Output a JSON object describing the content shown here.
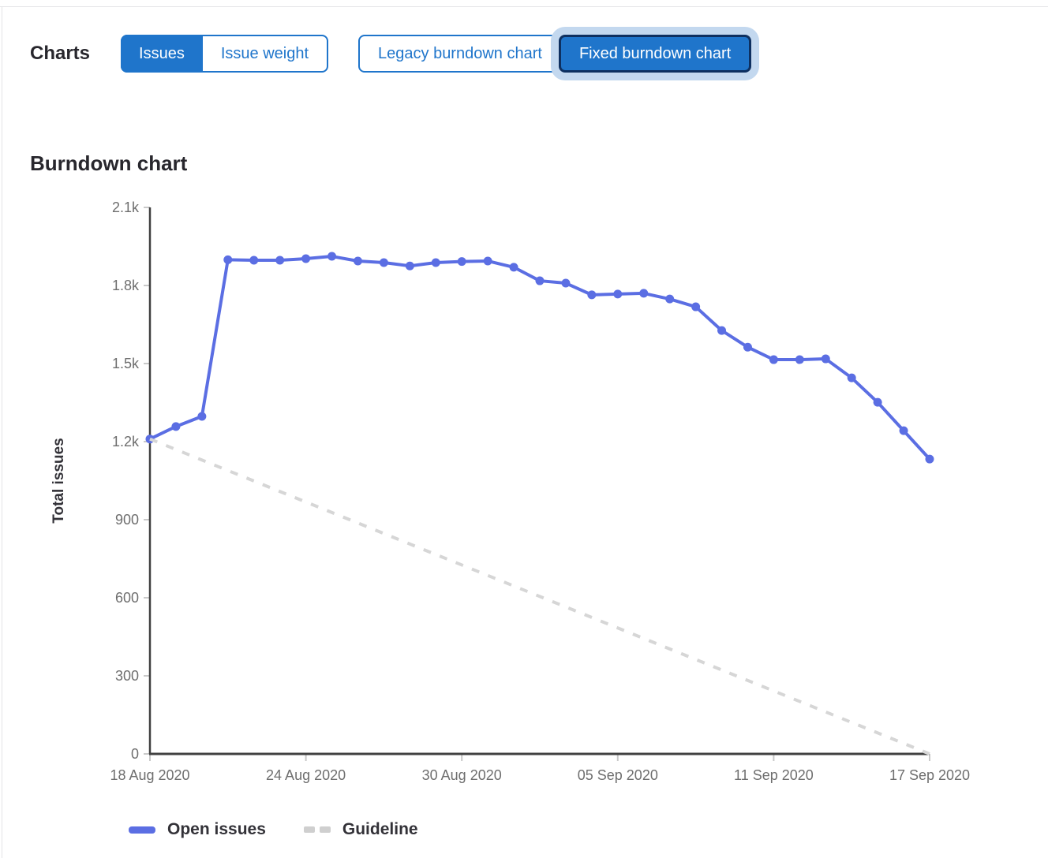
{
  "page": {
    "background": "#ffffff",
    "border_color": "#e4e4e7"
  },
  "header": {
    "charts_label": "Charts",
    "accent_color": "#1f75cb",
    "metric_toggle": [
      {
        "label": "Issues",
        "selected": true
      },
      {
        "label": "Issue weight",
        "selected": false
      }
    ],
    "version_toggle": [
      {
        "label": "Legacy burndown chart",
        "selected": false
      },
      {
        "label": "Fixed burndown chart",
        "selected": true,
        "focused": true
      }
    ]
  },
  "section": {
    "title": "Burndown chart"
  },
  "chart_data": {
    "type": "line",
    "title": "Burndown chart",
    "xlabel": "",
    "ylabel": "Total issues",
    "ylim": [
      0,
      2100
    ],
    "grid": false,
    "legend_position": "bottom",
    "y_ticks": [
      0,
      300,
      600,
      900,
      1200,
      1500,
      1800,
      2100
    ],
    "y_tick_labels": [
      "0",
      "300",
      "600",
      "900",
      "1.2k",
      "1.5k",
      "1.8k",
      "2.1k"
    ],
    "x_dates": [
      "18 Aug 2020",
      "19 Aug 2020",
      "20 Aug 2020",
      "21 Aug 2020",
      "22 Aug 2020",
      "23 Aug 2020",
      "24 Aug 2020",
      "25 Aug 2020",
      "26 Aug 2020",
      "27 Aug 2020",
      "28 Aug 2020",
      "29 Aug 2020",
      "30 Aug 2020",
      "31 Aug 2020",
      "01 Sep 2020",
      "02 Sep 2020",
      "03 Sep 2020",
      "04 Sep 2020",
      "05 Sep 2020",
      "06 Sep 2020",
      "07 Sep 2020",
      "08 Sep 2020",
      "09 Sep 2020",
      "10 Sep 2020",
      "11 Sep 2020",
      "12 Sep 2020",
      "13 Sep 2020",
      "14 Sep 2020",
      "15 Sep 2020",
      "16 Sep 2020",
      "17 Sep 2020"
    ],
    "x_tick_indices": [
      0,
      6,
      12,
      18,
      24,
      30
    ],
    "x_tick_labels": [
      "18 Aug 2020",
      "24 Aug 2020",
      "30 Aug 2020",
      "05 Sep 2020",
      "11 Sep 2020",
      "17 Sep 2020"
    ],
    "series": [
      {
        "name": "Open issues",
        "style": "solid",
        "marker": "dot",
        "color": "#5b6ee3",
        "values": [
          1210,
          1258,
          1297,
          1899,
          1897,
          1897,
          1903,
          1912,
          1894,
          1888,
          1875,
          1888,
          1892,
          1894,
          1870,
          1818,
          1809,
          1764,
          1767,
          1770,
          1748,
          1718,
          1627,
          1563,
          1515,
          1515,
          1518,
          1445,
          1351,
          1242,
          1133
        ]
      },
      {
        "name": "Guideline",
        "style": "dashed",
        "marker": "none",
        "color": "#d6d6d6",
        "points": [
          {
            "index": 0,
            "value": 1210
          },
          {
            "index": 30,
            "value": 0
          }
        ]
      }
    ],
    "axis": {
      "line_color": "#404040",
      "tick_color": "#c9c9c9",
      "tick_label_color": "#6e6e6e",
      "title_color": "#333238"
    },
    "legend": [
      {
        "label": "Open issues",
        "swatch": "line",
        "color": "#5b6ee3"
      },
      {
        "label": "Guideline",
        "swatch": "dashes",
        "color": "#cfcfcf"
      }
    ]
  }
}
